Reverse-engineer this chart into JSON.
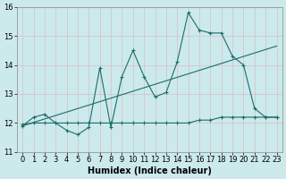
{
  "title": "",
  "xlabel": "Humidex (Indice chaleur)",
  "xlim": [
    -0.5,
    23.5
  ],
  "ylim": [
    11,
    16
  ],
  "bg_color": "#cce9ec",
  "line_color": "#1a6e6a",
  "grid_color": "#b0d8dc",
  "line1_x": [
    0,
    1,
    2,
    3,
    4,
    5,
    6,
    7,
    8,
    9,
    10,
    11,
    12,
    13,
    14,
    15,
    16,
    17,
    18,
    19,
    20,
    21,
    22,
    23
  ],
  "line1_y": [
    11.9,
    12.2,
    12.3,
    12.0,
    11.75,
    11.6,
    11.85,
    13.9,
    11.85,
    13.6,
    14.5,
    13.6,
    12.9,
    13.05,
    14.1,
    15.8,
    15.2,
    15.1,
    15.1,
    14.3,
    14.0,
    12.5,
    12.2,
    12.2
  ],
  "line2_x": [
    0,
    1,
    2,
    3,
    4,
    5,
    6,
    7,
    8,
    9,
    10,
    11,
    12,
    13,
    14,
    15,
    16,
    17,
    18,
    19,
    20,
    21,
    22,
    23
  ],
  "line2_y": [
    11.95,
    12.0,
    12.0,
    12.0,
    12.0,
    12.0,
    12.0,
    12.0,
    12.0,
    12.0,
    12.0,
    12.0,
    12.0,
    12.0,
    12.0,
    12.0,
    12.1,
    12.1,
    12.2,
    12.2,
    12.2,
    12.2,
    12.2,
    12.2
  ],
  "trend_x": [
    0,
    23
  ],
  "trend_y": [
    11.9,
    14.65
  ],
  "yticks": [
    11,
    12,
    13,
    14,
    15,
    16
  ],
  "xticks": [
    0,
    1,
    2,
    3,
    4,
    5,
    6,
    7,
    8,
    9,
    10,
    11,
    12,
    13,
    14,
    15,
    16,
    17,
    18,
    19,
    20,
    21,
    22,
    23
  ],
  "fontsize_label": 7,
  "fontsize_tick": 6
}
